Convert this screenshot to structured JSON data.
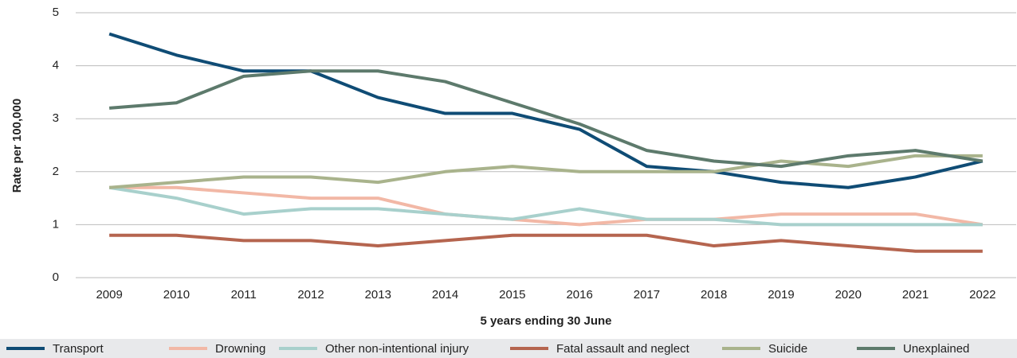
{
  "chart_data": {
    "type": "line",
    "x_label": "5 years ending 30 June",
    "y_label": "Rate per 100,000",
    "categories": [
      "2009",
      "2010",
      "2011",
      "2012",
      "2013",
      "2014",
      "2015",
      "2016",
      "2017",
      "2018",
      "2019",
      "2020",
      "2021",
      "2022"
    ],
    "series": [
      {
        "name": "Transport",
        "color": "#0f4c75",
        "values": [
          4.6,
          4.2,
          3.9,
          3.9,
          3.4,
          3.1,
          3.1,
          2.8,
          2.1,
          2.0,
          1.8,
          1.7,
          1.9,
          2.2
        ]
      },
      {
        "name": "Drowning",
        "color": "#f2b8a6",
        "values": [
          1.7,
          1.7,
          1.6,
          1.5,
          1.5,
          1.2,
          1.1,
          1.0,
          1.1,
          1.1,
          1.2,
          1.2,
          1.2,
          1.0
        ]
      },
      {
        "name": "Other non-intentional injury",
        "color": "#a8d0cc",
        "values": [
          1.7,
          1.5,
          1.2,
          1.3,
          1.3,
          1.2,
          1.1,
          1.3,
          1.1,
          1.1,
          1.0,
          1.0,
          1.0,
          1.0
        ]
      },
      {
        "name": "Fatal assault and neglect",
        "color": "#b5654f",
        "values": [
          0.8,
          0.8,
          0.7,
          0.7,
          0.6,
          0.7,
          0.8,
          0.8,
          0.8,
          0.6,
          0.7,
          0.6,
          0.5,
          0.5
        ]
      },
      {
        "name": "Suicide",
        "color": "#a9b38c",
        "values": [
          1.7,
          1.8,
          1.9,
          1.9,
          1.8,
          2.0,
          2.1,
          2.0,
          2.0,
          2.0,
          2.2,
          2.1,
          2.3,
          2.3
        ]
      },
      {
        "name": "Unexplained",
        "color": "#5d7a6c",
        "values": [
          3.2,
          3.3,
          3.8,
          3.9,
          3.9,
          3.7,
          3.3,
          2.9,
          2.4,
          2.2,
          2.1,
          2.3,
          2.4,
          2.2
        ]
      }
    ],
    "ylim": [
      0,
      5
    ],
    "yticks": [
      0,
      1,
      2,
      3,
      4,
      5
    ],
    "grid": true,
    "legend": "bottom"
  }
}
